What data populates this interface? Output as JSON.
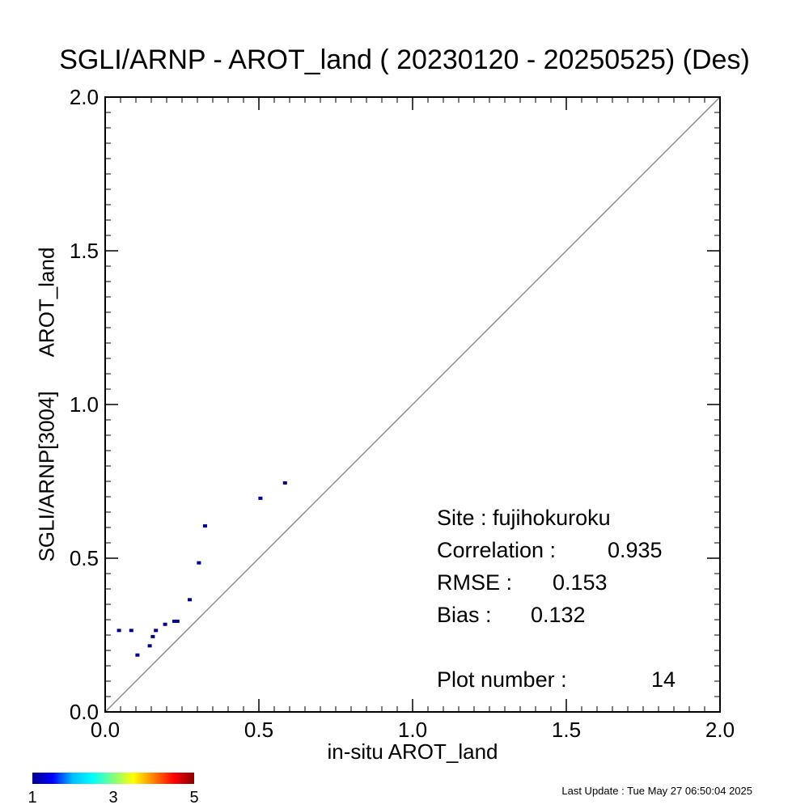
{
  "chart_data": {
    "type": "scatter",
    "title": "SGLI/ARNP - AROT_land ( 20230120 - 20250525) (Des)",
    "xlabel": "in-situ AROT_land",
    "ylabel_parts": [
      "SGLI/ARNP[3004]",
      "AROT_land"
    ],
    "xlim": [
      0.0,
      2.0
    ],
    "ylim": [
      0.0,
      2.0
    ],
    "x_tick_labels": [
      "0.0",
      "0.5",
      "1.0",
      "1.5",
      "2.0"
    ],
    "y_tick_labels": [
      "0.0",
      "0.5",
      "1.0",
      "1.5",
      "2.0"
    ],
    "reference_line": "1:1",
    "points": [
      {
        "x": 0.045,
        "y": 0.265
      },
      {
        "x": 0.085,
        "y": 0.265
      },
      {
        "x": 0.105,
        "y": 0.185
      },
      {
        "x": 0.145,
        "y": 0.215
      },
      {
        "x": 0.155,
        "y": 0.245
      },
      {
        "x": 0.165,
        "y": 0.265
      },
      {
        "x": 0.195,
        "y": 0.285
      },
      {
        "x": 0.225,
        "y": 0.295
      },
      {
        "x": 0.235,
        "y": 0.295
      },
      {
        "x": 0.275,
        "y": 0.365
      },
      {
        "x": 0.305,
        "y": 0.485
      },
      {
        "x": 0.325,
        "y": 0.605
      },
      {
        "x": 0.505,
        "y": 0.695
      },
      {
        "x": 0.585,
        "y": 0.745
      }
    ],
    "point_color": "#00008b",
    "colorbar": {
      "tick_labels": [
        "1",
        "3",
        "5"
      ],
      "colors": [
        "#00008b",
        "#0000ff",
        "#00bfff",
        "#00ffff",
        "#7fff7f",
        "#ffff00",
        "#ff7f00",
        "#ff0000",
        "#8b0000"
      ]
    },
    "stats": {
      "site_label": "Site : fujihokuroku",
      "correlation_label": "Correlation :",
      "correlation_value": "0.935",
      "rmse_label": "RMSE :",
      "rmse_value": "0.153",
      "bias_label": "Bias :",
      "bias_value": "0.132",
      "plot_number_label": "Plot number :",
      "plot_number_value": "14"
    },
    "last_update": "Last Update : Tue May 27 06:50:04 2025"
  }
}
